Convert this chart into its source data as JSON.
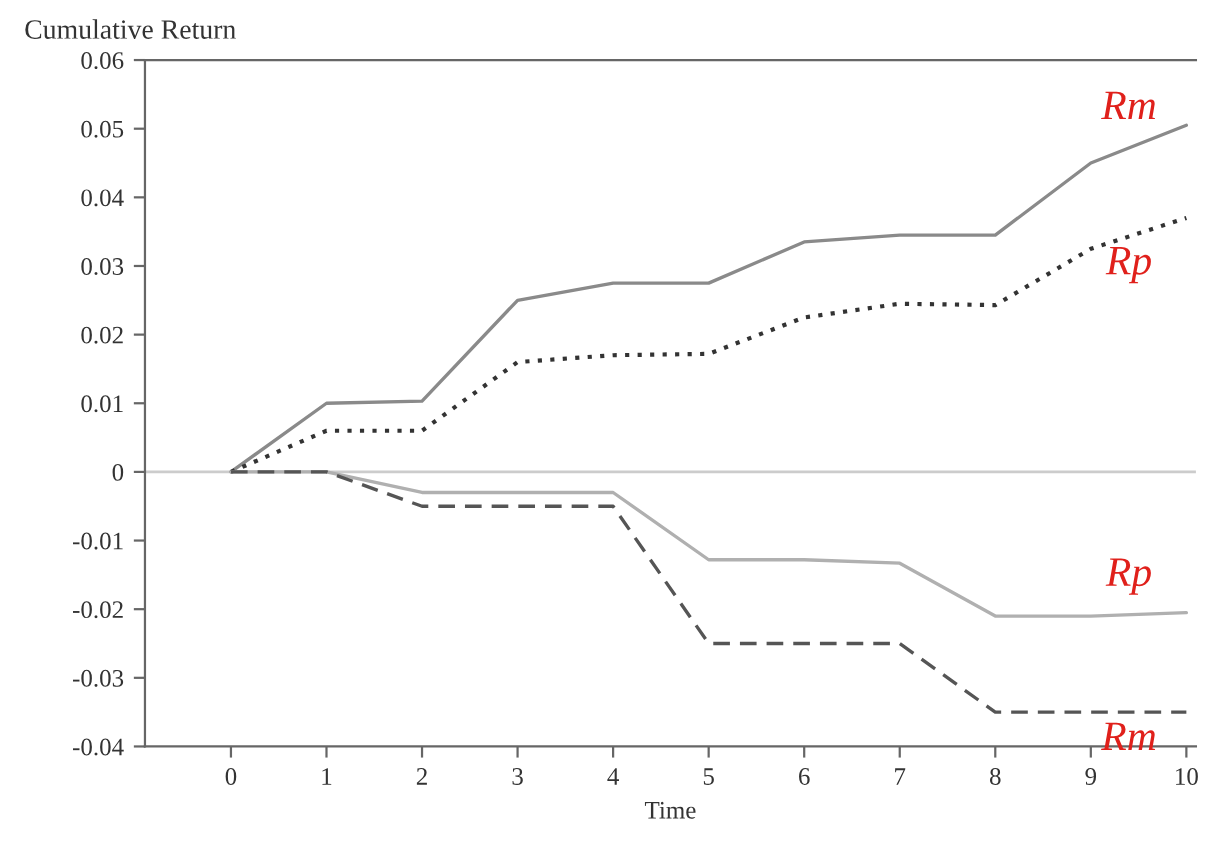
{
  "chart_data": {
    "type": "line",
    "xlabel": "Time",
    "ylabel": "Cumulative Return",
    "x": [
      0,
      1,
      2,
      3,
      4,
      5,
      6,
      7,
      8,
      9,
      10
    ],
    "series": [
      {
        "name": "Rm",
        "color": "#8a8a8a",
        "line_style": "solid",
        "values": [
          0,
          0.01,
          0.0103,
          0.025,
          0.0275,
          0.0275,
          0.0335,
          0.0345,
          0.0345,
          0.045,
          0.0505
        ]
      },
      {
        "name": "Rp",
        "color": "#333333",
        "line_style": "dotted",
        "values": [
          0,
          0.006,
          0.006,
          0.016,
          0.017,
          0.0172,
          0.0225,
          0.0245,
          0.0243,
          0.0325,
          0.037
        ]
      },
      {
        "name": "Rp",
        "color": "#b0b0b0",
        "line_style": "solid",
        "values": [
          0,
          0,
          -0.003,
          -0.003,
          -0.003,
          -0.0128,
          -0.0128,
          -0.0133,
          -0.021,
          -0.021,
          -0.0205
        ]
      },
      {
        "name": "Rm",
        "color": "#555555",
        "line_style": "dashed",
        "values": [
          0,
          0,
          -0.005,
          -0.005,
          -0.005,
          -0.025,
          -0.025,
          -0.025,
          -0.035,
          -0.035,
          -0.035
        ]
      }
    ],
    "xlim": [
      -0.9,
      10.1
    ],
    "xticks": [
      0,
      1,
      2,
      3,
      4,
      5,
      6,
      7,
      8,
      9,
      10
    ],
    "ylim": [
      -0.04,
      0.06
    ],
    "yticks": [
      {
        "value": -0.04,
        "label": "-0.04"
      },
      {
        "value": -0.03,
        "label": "-0.03"
      },
      {
        "value": -0.02,
        "label": "-0.02"
      },
      {
        "value": -0.01,
        "label": "-0.01"
      },
      0,
      0.01,
      0.02,
      0.03,
      0.04,
      0.05,
      0.06
    ],
    "ref_lines": [
      {
        "axis": "y",
        "value": 0,
        "color": "#cccccc"
      }
    ],
    "grid": false,
    "legend": false,
    "marker": "none"
  }
}
